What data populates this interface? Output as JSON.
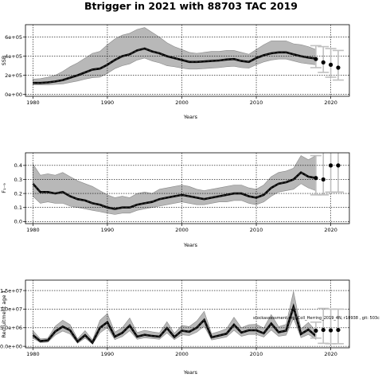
{
  "title": "Btrigger in 2021 with 88703 TAC 2019",
  "colors": {
    "band": "#b8b8b8",
    "band_edge": "#8a8a8a",
    "line": "#000000",
    "median": "#303030",
    "errbar": "#c0c0c0",
    "point": "#000000",
    "grid": "#000000"
  },
  "chart_data": [
    {
      "type": "line",
      "id": "ssb",
      "title": "",
      "xlabel": "Years",
      "ylabel": "SSB",
      "xlim": [
        1979,
        2022.5
      ],
      "ylim": [
        -20000,
        730000
      ],
      "xticks": [
        1980,
        1990,
        2000,
        2010,
        2020
      ],
      "xtick_labels": [
        "1980",
        "1990",
        "2000",
        "2010",
        "2020"
      ],
      "yticks": [
        0,
        200000,
        400000,
        600000
      ],
      "ytick_labels": [
        "0e+00",
        "2e+05",
        "4e+05",
        "6e+05"
      ],
      "grid": true,
      "x": [
        1980,
        1981,
        1982,
        1983,
        1984,
        1985,
        1986,
        1987,
        1988,
        1989,
        1990,
        1991,
        1992,
        1993,
        1994,
        1995,
        1996,
        1997,
        1998,
        1999,
        2000,
        2001,
        2002,
        2003,
        2004,
        2005,
        2006,
        2007,
        2008,
        2009,
        2010,
        2011,
        2012,
        2013,
        2014,
        2015,
        2016,
        2017,
        2018
      ],
      "series": [
        {
          "role": "median",
          "values": [
            120000,
            120000,
            125000,
            135000,
            150000,
            175000,
            200000,
            230000,
            260000,
            270000,
            310000,
            360000,
            400000,
            420000,
            460000,
            480000,
            450000,
            430000,
            400000,
            380000,
            360000,
            340000,
            340000,
            345000,
            350000,
            355000,
            365000,
            370000,
            350000,
            340000,
            380000,
            410000,
            430000,
            440000,
            440000,
            420000,
            400000,
            385000,
            375000
          ]
        },
        {
          "role": "lower",
          "values": [
            100000,
            100000,
            100000,
            105000,
            110000,
            125000,
            140000,
            160000,
            175000,
            180000,
            220000,
            270000,
            300000,
            320000,
            360000,
            380000,
            350000,
            330000,
            300000,
            290000,
            275000,
            265000,
            265000,
            270000,
            275000,
            280000,
            290000,
            295000,
            280000,
            275000,
            310000,
            340000,
            360000,
            370000,
            370000,
            350000,
            330000,
            320000,
            310000
          ]
        },
        {
          "role": "upper",
          "values": [
            160000,
            165000,
            180000,
            200000,
            240000,
            290000,
            330000,
            380000,
            430000,
            450000,
            520000,
            580000,
            620000,
            640000,
            680000,
            700000,
            650000,
            600000,
            540000,
            500000,
            470000,
            440000,
            430000,
            440000,
            450000,
            450000,
            460000,
            460000,
            440000,
            420000,
            470000,
            520000,
            560000,
            560000,
            560000,
            530000,
            520000,
            500000,
            470000
          ]
        }
      ],
      "points": [
        {
          "x": 2018,
          "y": 370000,
          "lo": 280000,
          "hi": 510000
        },
        {
          "x": 2019,
          "y": 335000,
          "lo": 230000,
          "hi": 500000
        },
        {
          "x": 2020,
          "y": 310000,
          "lo": 180000,
          "hi": 480000
        },
        {
          "x": 2021,
          "y": 280000,
          "lo": 150000,
          "hi": 460000
        }
      ]
    },
    {
      "type": "line",
      "id": "f",
      "title": "",
      "xlabel": "Years",
      "ylabel": "F₁₋₉",
      "xlim": [
        1979,
        2022.5
      ],
      "ylim": [
        -0.015,
        0.49
      ],
      "xticks": [
        1980,
        1990,
        2000,
        2010,
        2020
      ],
      "xtick_labels": [
        "1980",
        "1990",
        "2000",
        "2010",
        "2020"
      ],
      "yticks": [
        0.0,
        0.1,
        0.2,
        0.3,
        0.4
      ],
      "ytick_labels": [
        "0.0",
        "0.1",
        "0.2",
        "0.3",
        "0.4"
      ],
      "grid": true,
      "x": [
        1980,
        1981,
        1982,
        1983,
        1984,
        1985,
        1986,
        1987,
        1988,
        1989,
        1990,
        1991,
        1992,
        1993,
        1994,
        1995,
        1996,
        1997,
        1998,
        1999,
        2000,
        2001,
        2002,
        2003,
        2004,
        2005,
        2006,
        2007,
        2008,
        2009,
        2010,
        2011,
        2012,
        2013,
        2014,
        2015,
        2016,
        2017,
        2018
      ],
      "series": [
        {
          "role": "median",
          "values": [
            0.27,
            0.21,
            0.21,
            0.2,
            0.21,
            0.18,
            0.16,
            0.15,
            0.13,
            0.12,
            0.1,
            0.09,
            0.1,
            0.1,
            0.12,
            0.13,
            0.14,
            0.16,
            0.17,
            0.18,
            0.19,
            0.18,
            0.17,
            0.16,
            0.17,
            0.18,
            0.19,
            0.2,
            0.2,
            0.18,
            0.17,
            0.19,
            0.24,
            0.27,
            0.28,
            0.3,
            0.35,
            0.32,
            0.31
          ]
        },
        {
          "role": "lower",
          "values": [
            0.18,
            0.13,
            0.14,
            0.13,
            0.13,
            0.11,
            0.1,
            0.09,
            0.08,
            0.07,
            0.06,
            0.05,
            0.06,
            0.06,
            0.08,
            0.09,
            0.1,
            0.11,
            0.12,
            0.13,
            0.14,
            0.13,
            0.12,
            0.12,
            0.13,
            0.14,
            0.14,
            0.15,
            0.15,
            0.13,
            0.12,
            0.14,
            0.18,
            0.21,
            0.22,
            0.23,
            0.27,
            0.24,
            0.22
          ]
        },
        {
          "role": "upper",
          "values": [
            0.41,
            0.33,
            0.34,
            0.33,
            0.35,
            0.32,
            0.29,
            0.27,
            0.25,
            0.22,
            0.19,
            0.17,
            0.18,
            0.17,
            0.2,
            0.21,
            0.2,
            0.23,
            0.24,
            0.25,
            0.26,
            0.25,
            0.23,
            0.22,
            0.23,
            0.24,
            0.25,
            0.26,
            0.26,
            0.24,
            0.23,
            0.26,
            0.32,
            0.35,
            0.36,
            0.38,
            0.47,
            0.44,
            0.47
          ]
        }
      ],
      "points": [
        {
          "x": 2018,
          "y": 0.31,
          "lo": 0.19,
          "hi": 0.47
        },
        {
          "x": 2019,
          "y": 0.3,
          "lo": 0.19,
          "hi": 0.55
        },
        {
          "x": 2020,
          "y": 0.4,
          "lo": 0.21,
          "hi": 0.55
        },
        {
          "x": 2021,
          "y": 0.4,
          "lo": 0.21,
          "hi": 0.55
        }
      ]
    },
    {
      "type": "line",
      "id": "recruitment",
      "title": "",
      "xlabel": "Years",
      "ylabel": "Recruitment age 1",
      "note": "stockassessment.org, Coll_Herring_2019_4N, r10938 , git: 503c",
      "xlim": [
        1979,
        2022.5
      ],
      "ylim": [
        -400000,
        17800000
      ],
      "xticks": [
        1980,
        1990,
        2000,
        2010,
        2020
      ],
      "xtick_labels": [
        "1980",
        "1990",
        "2000",
        "2010",
        "2020"
      ],
      "yticks": [
        0,
        5000000,
        10000000,
        15000000
      ],
      "ytick_labels": [
        "0.0e+00",
        "5.0e+06",
        "1.0e+07",
        "1.5e+07"
      ],
      "grid": true,
      "x": [
        1980,
        1981,
        1982,
        1983,
        1984,
        1985,
        1986,
        1987,
        1988,
        1989,
        1990,
        1991,
        1992,
        1993,
        1994,
        1995,
        1996,
        1997,
        1998,
        1999,
        2000,
        2001,
        2002,
        2003,
        2004,
        2005,
        2006,
        2007,
        2008,
        2009,
        2010,
        2011,
        2012,
        2013,
        2014,
        2015,
        2016,
        2017,
        2018
      ],
      "series": [
        {
          "role": "median",
          "values": [
            3000000,
            1400000,
            1600000,
            4000000,
            5300000,
            4300000,
            1300000,
            3000000,
            1000000,
            5000000,
            6500000,
            2600000,
            3600000,
            5600000,
            2600000,
            3100000,
            2800000,
            2600000,
            4900000,
            2500000,
            4200000,
            3900000,
            5000000,
            7100000,
            2400000,
            2900000,
            3400000,
            5800000,
            3700000,
            4300000,
            4300000,
            3500000,
            6100000,
            3800000,
            4200000,
            10600000,
            3300000,
            4500000,
            2800000
          ]
        },
        {
          "role": "lower",
          "values": [
            2200000,
            1000000,
            1100000,
            3000000,
            4100000,
            3300000,
            800000,
            2200000,
            600000,
            3600000,
            5000000,
            1800000,
            2600000,
            4200000,
            1900000,
            2300000,
            2100000,
            1900000,
            3600000,
            1800000,
            3100000,
            2900000,
            3800000,
            5400000,
            1700000,
            2100000,
            2500000,
            4300000,
            2700000,
            3200000,
            3200000,
            2500000,
            4400000,
            2700000,
            3000000,
            7500000,
            2300000,
            3200000,
            1900000
          ]
        },
        {
          "role": "upper",
          "values": [
            4200000,
            2000000,
            2200000,
            5400000,
            7000000,
            5800000,
            2000000,
            4200000,
            1700000,
            7000000,
            8800000,
            3800000,
            5000000,
            7600000,
            3700000,
            4300000,
            3900000,
            3600000,
            6600000,
            3500000,
            5600000,
            5300000,
            6800000,
            9400000,
            3400000,
            4000000,
            4700000,
            7800000,
            5000000,
            5800000,
            5900000,
            4900000,
            8500000,
            5300000,
            5900000,
            14800000,
            4700000,
            6400000,
            4100000
          ]
        }
      ],
      "points": [
        {
          "x": 2018,
          "y": 4200000,
          "lo": 2200000,
          "hi": 6500000
        },
        {
          "x": 2019,
          "y": 4400000,
          "lo": 800000,
          "hi": 10200000
        },
        {
          "x": 2020,
          "y": 4300000,
          "lo": 700000,
          "hi": 10000000
        },
        {
          "x": 2021,
          "y": 4400000,
          "lo": 700000,
          "hi": 10000000
        }
      ]
    }
  ]
}
